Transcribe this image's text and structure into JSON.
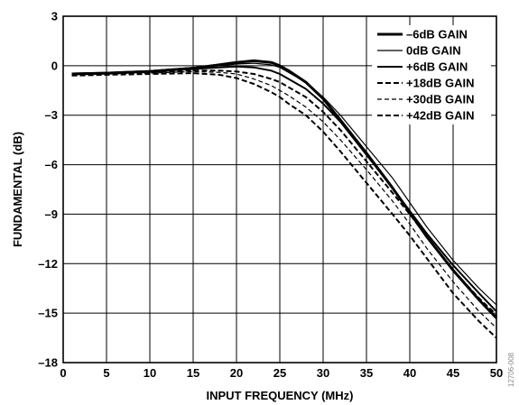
{
  "chart_data": {
    "type": "line",
    "title": "",
    "xlabel": "INPUT FREQUENCY (MHz)",
    "ylabel": "FUNDAMENTAL (dB)",
    "xlim": [
      0,
      50
    ],
    "ylim": [
      -18,
      3
    ],
    "xticks": [
      0,
      5,
      10,
      15,
      20,
      25,
      30,
      35,
      40,
      45,
      50
    ],
    "yticks": [
      3,
      0,
      -3,
      -6,
      -9,
      -12,
      -15,
      -18
    ],
    "ytick_labels": [
      "3",
      "0",
      "–3",
      "–6",
      "–9",
      "–12",
      "–15",
      "–18"
    ],
    "grid": true,
    "legend_position": "top-right",
    "x": [
      1,
      5,
      10,
      15,
      18,
      20,
      22,
      24,
      25,
      26,
      28,
      30,
      32,
      35,
      38,
      40,
      42,
      45,
      48,
      50
    ],
    "series": [
      {
        "name": "–6dB GAIN",
        "style": "solid",
        "width": 3,
        "values": [
          -0.5,
          -0.45,
          -0.35,
          -0.15,
          0.05,
          0.2,
          0.3,
          0.2,
          0.0,
          -0.3,
          -1.0,
          -2.0,
          -3.3,
          -5.3,
          -7.4,
          -8.9,
          -10.4,
          -12.4,
          -14.2,
          -15.3
        ]
      },
      {
        "name": "0dB GAIN",
        "style": "solid",
        "width": 1.2,
        "values": [
          -0.45,
          -0.4,
          -0.3,
          -0.1,
          0.0,
          0.1,
          0.15,
          0.05,
          -0.1,
          -0.4,
          -1.0,
          -1.9,
          -3.0,
          -4.9,
          -6.8,
          -8.3,
          -9.8,
          -11.8,
          -13.5,
          -14.5
        ]
      },
      {
        "name": "+6dB GAIN",
        "style": "solid",
        "width": 2,
        "values": [
          -0.5,
          -0.45,
          -0.35,
          -0.2,
          -0.1,
          -0.05,
          -0.1,
          -0.3,
          -0.5,
          -0.8,
          -1.4,
          -2.3,
          -3.4,
          -5.4,
          -7.4,
          -8.8,
          -10.2,
          -12.1,
          -13.8,
          -14.9
        ]
      },
      {
        "name": "+18dB GAIN",
        "style": "dashed",
        "width": 2,
        "values": [
          -0.55,
          -0.5,
          -0.4,
          -0.3,
          -0.3,
          -0.35,
          -0.5,
          -0.8,
          -1.0,
          -1.3,
          -1.9,
          -2.8,
          -3.9,
          -5.8,
          -7.7,
          -9.0,
          -10.4,
          -12.4,
          -14.1,
          -15.1
        ]
      },
      {
        "name": "+30dB GAIN",
        "style": "dashed",
        "width": 1.2,
        "values": [
          -0.55,
          -0.5,
          -0.45,
          -0.35,
          -0.4,
          -0.5,
          -0.8,
          -1.2,
          -1.5,
          -1.8,
          -2.5,
          -3.4,
          -4.5,
          -6.3,
          -8.2,
          -9.6,
          -11.1,
          -13.1,
          -14.9,
          -15.9
        ]
      },
      {
        "name": "+42dB GAIN",
        "style": "dashed",
        "width": 2,
        "values": [
          -0.6,
          -0.55,
          -0.5,
          -0.45,
          -0.55,
          -0.75,
          -1.1,
          -1.6,
          -1.9,
          -2.3,
          -3.0,
          -4.0,
          -5.2,
          -7.1,
          -9.0,
          -10.3,
          -11.7,
          -13.8,
          -15.5,
          -16.5
        ]
      }
    ]
  },
  "figure_id": "12706-008"
}
